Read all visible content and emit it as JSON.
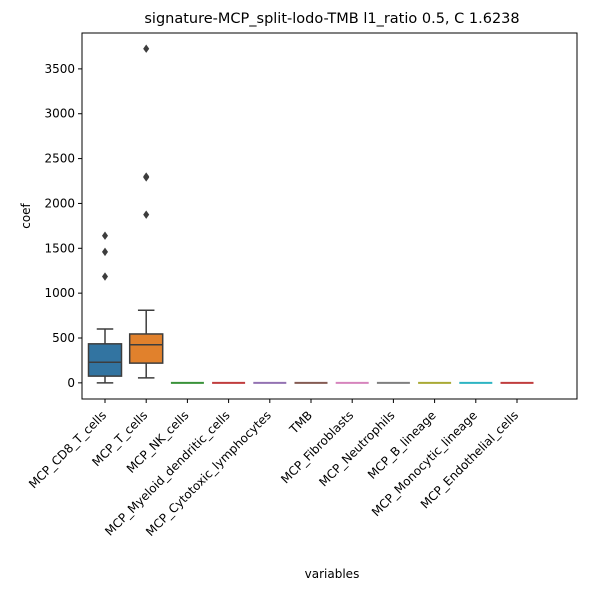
{
  "chart_data": {
    "type": "box",
    "title": "signature-MCP_split-lodo-TMB l1_ratio 0.5, C 1.6238",
    "xlabel": "variables",
    "ylabel": "coef",
    "ylim": [
      -180,
      3900
    ],
    "yticks": [
      0,
      500,
      1000,
      1500,
      2000,
      2500,
      3000,
      3500
    ],
    "grid": false,
    "legend": "none",
    "categories": [
      "MCP_CD8_T_cells",
      "MCP_T_cells",
      "MCP_NK_cells",
      "MCP_Myeloid_dendritic_cells",
      "MCP_Cytotoxic_lymphocytes",
      "TMB",
      "MCP_Fibroblasts",
      "MCP_Neutrophils",
      "MCP_B_lineage",
      "MCP_Monocytic_lineage",
      "MCP_Endothelial_cells"
    ],
    "boxes": [
      {
        "category": "MCP_CD8_T_cells",
        "whisker_low": 0,
        "q1": 75,
        "median": 230,
        "q3": 435,
        "whisker_high": 600,
        "outliers": [
          1185,
          1460,
          1640
        ],
        "color": "#3274a1"
      },
      {
        "category": "MCP_T_cells",
        "whisker_low": 55,
        "q1": 220,
        "median": 425,
        "q3": 545,
        "whisker_high": 810,
        "outliers": [
          1875,
          2290,
          2300,
          3725
        ],
        "color": "#e1812c"
      },
      {
        "category": "MCP_NK_cells",
        "whisker_low": 0,
        "q1": 0,
        "median": 0,
        "q3": 0,
        "whisker_high": 0,
        "outliers": [],
        "color": "#3a923a"
      },
      {
        "category": "MCP_Myeloid_dendritic_cells",
        "whisker_low": 0,
        "q1": 0,
        "median": 0,
        "q3": 0,
        "whisker_high": 0,
        "outliers": [],
        "color": "#c03d3e"
      },
      {
        "category": "MCP_Cytotoxic_lymphocytes",
        "whisker_low": 0,
        "q1": 0,
        "median": 0,
        "q3": 0,
        "whisker_high": 0,
        "outliers": [],
        "color": "#9372b2"
      },
      {
        "category": "TMB",
        "whisker_low": 0,
        "q1": 0,
        "median": 0,
        "q3": 0,
        "whisker_high": 0,
        "outliers": [],
        "color": "#845b53"
      },
      {
        "category": "MCP_Fibroblasts",
        "whisker_low": 0,
        "q1": 0,
        "median": 0,
        "q3": 0,
        "whisker_high": 0,
        "outliers": [],
        "color": "#d684bd"
      },
      {
        "category": "MCP_Neutrophils",
        "whisker_low": 0,
        "q1": 0,
        "median": 0,
        "q3": 0,
        "whisker_high": 0,
        "outliers": [],
        "color": "#7f7f7f"
      },
      {
        "category": "MCP_B_lineage",
        "whisker_low": 0,
        "q1": 0,
        "median": 0,
        "q3": 0,
        "whisker_high": 0,
        "outliers": [],
        "color": "#a9aa35"
      },
      {
        "category": "MCP_Monocytic_lineage",
        "whisker_low": 0,
        "q1": 0,
        "median": 0,
        "q3": 0,
        "whisker_high": 0,
        "outliers": [],
        "color": "#2eb4c3"
      },
      {
        "category": "MCP_Endothelial_cells",
        "whisker_low": 0,
        "q1": 0,
        "median": 0,
        "q3": 0,
        "whisker_high": 0,
        "outliers": [],
        "color": "#c03d3e"
      }
    ]
  }
}
